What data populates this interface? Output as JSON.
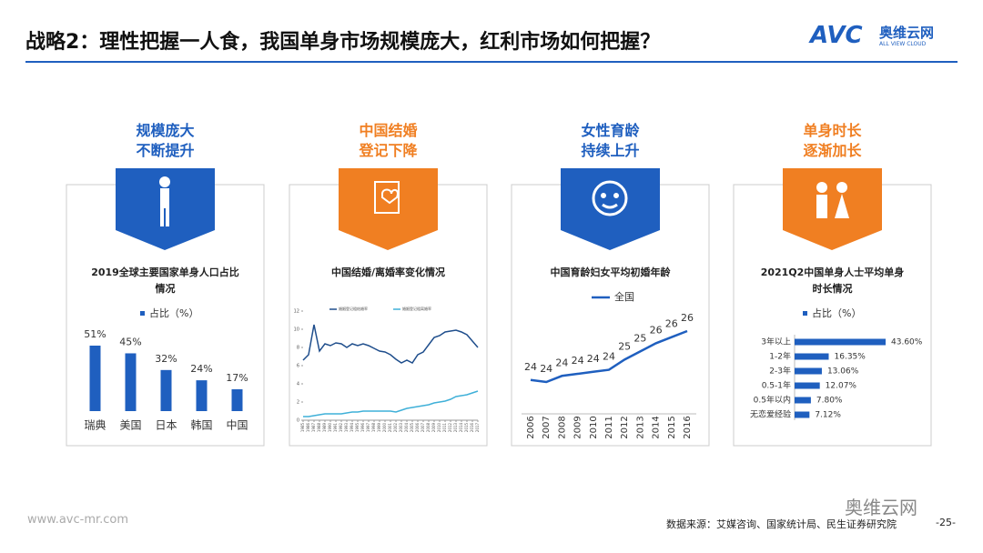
{
  "header": {
    "title": "战略2：理性把握一人食，我国单身市场规模庞大，红利市场如何把握？",
    "logo": "AVC",
    "logo_cn": "奥维云网",
    "logo_en": "ALL VIEW CLOUD"
  },
  "panels": [
    {
      "heading": [
        "规模庞大",
        "不断提升"
      ]
    },
    {
      "heading": [
        "中国结婚",
        "登记下降"
      ]
    },
    {
      "heading": [
        "女性育龄",
        "持续上升"
      ]
    },
    {
      "heading": [
        "单身时长",
        "逐渐加长"
      ]
    }
  ],
  "chart_data": [
    {
      "type": "bar",
      "title": "2019全球主要国家单身人口占比情况",
      "categories": [
        "瑞典",
        "美国",
        "日本",
        "韩国",
        "中国"
      ],
      "series": [
        {
          "name": "占比（%）",
          "color": "#1f5fbf",
          "values": [
            51,
            45,
            32,
            24,
            17
          ],
          "value_labels": [
            "51%",
            "45%",
            "32%",
            "24%",
            "17%"
          ]
        }
      ]
    },
    {
      "type": "line",
      "title": "中国结婚/离婚率变化情况",
      "x": [
        1985,
        1986,
        1987,
        1988,
        1989,
        1990,
        1991,
        1992,
        1993,
        1994,
        1995,
        1996,
        1997,
        1998,
        1999,
        2000,
        2001,
        2002,
        2003,
        2004,
        2005,
        2006,
        2007,
        2008,
        2009,
        2010,
        2011,
        2012,
        2013,
        2014,
        2015,
        2016,
        2017
      ],
      "xlim": [
        1985,
        2017
      ],
      "xticks": [
        1985,
        1986,
        1987,
        1988,
        1989,
        1990,
        1991,
        1992,
        1993,
        1994,
        1995,
        1996,
        1997,
        1998,
        1999,
        2000,
        2001,
        2002,
        2003,
        2004,
        2005,
        2006,
        2007,
        2008,
        2009,
        2010,
        2011,
        2012,
        2013,
        2014,
        2015,
        2016,
        2017
      ],
      "ylim": [
        0,
        12
      ],
      "yticks": [
        0,
        2,
        4,
        6,
        8,
        10,
        12
      ],
      "series": [
        {
          "name": "婚姻登记粗结婚率",
          "color": "#1f4e8c",
          "values": [
            6.6,
            7.2,
            10.5,
            7.6,
            8.4,
            8.2,
            8.5,
            8.4,
            8.0,
            8.4,
            8.2,
            8.4,
            8.2,
            7.9,
            7.6,
            7.5,
            7.2,
            6.7,
            6.3,
            6.6,
            6.3,
            7.2,
            7.5,
            8.3,
            9.1,
            9.3,
            9.7,
            9.8,
            9.9,
            9.7,
            9.4,
            8.7,
            8.0
          ]
        },
        {
          "name": "婚姻登记粗离婚率",
          "color": "#3fb0d8",
          "values": [
            0.4,
            0.4,
            0.5,
            0.6,
            0.7,
            0.7,
            0.7,
            0.7,
            0.8,
            0.9,
            0.9,
            1.0,
            1.0,
            1.0,
            1.0,
            1.0,
            1.0,
            0.9,
            1.1,
            1.3,
            1.4,
            1.5,
            1.6,
            1.7,
            1.9,
            2.0,
            2.1,
            2.3,
            2.6,
            2.7,
            2.8,
            3.0,
            3.2
          ]
        }
      ]
    },
    {
      "type": "line",
      "title": "中国育龄妇女平均初婚年龄",
      "categories": [
        "2006",
        "2007",
        "2008",
        "2009",
        "2010",
        "2011",
        "2012",
        "2013",
        "2014",
        "2015",
        "2016"
      ],
      "series": [
        {
          "name": "全国",
          "color": "#1f5fbf",
          "values": [
            23.9,
            23.8,
            24.1,
            24.2,
            24.3,
            24.4,
            24.9,
            25.3,
            25.7,
            26.0,
            26.3
          ],
          "value_labels": [
            "24",
            "24",
            "24",
            "24",
            "24",
            "24",
            "25",
            "25",
            "26",
            "26",
            "26"
          ]
        }
      ]
    },
    {
      "type": "barh",
      "title": "2021Q2中国单身人士平均单身时长情况",
      "categories": [
        "3年以上",
        "1-2年",
        "2-3年",
        "0.5-1年",
        "0.5年以内",
        "无恋爱经验"
      ],
      "series": [
        {
          "name": "占比（%）",
          "color": "#1f5fbf",
          "values": [
            43.6,
            16.35,
            13.06,
            12.07,
            7.8,
            7.12
          ],
          "value_labels": [
            "43.60%",
            "16.35%",
            "13.06%",
            "12.07%",
            "7.80%",
            "7.12%"
          ]
        }
      ]
    }
  ],
  "footer": {
    "website": "www.avc-mr.com",
    "source": "数据来源：艾媒咨询、国家统计局、民生证券研究院",
    "page": "-25-",
    "watermark": "奥维云网"
  }
}
